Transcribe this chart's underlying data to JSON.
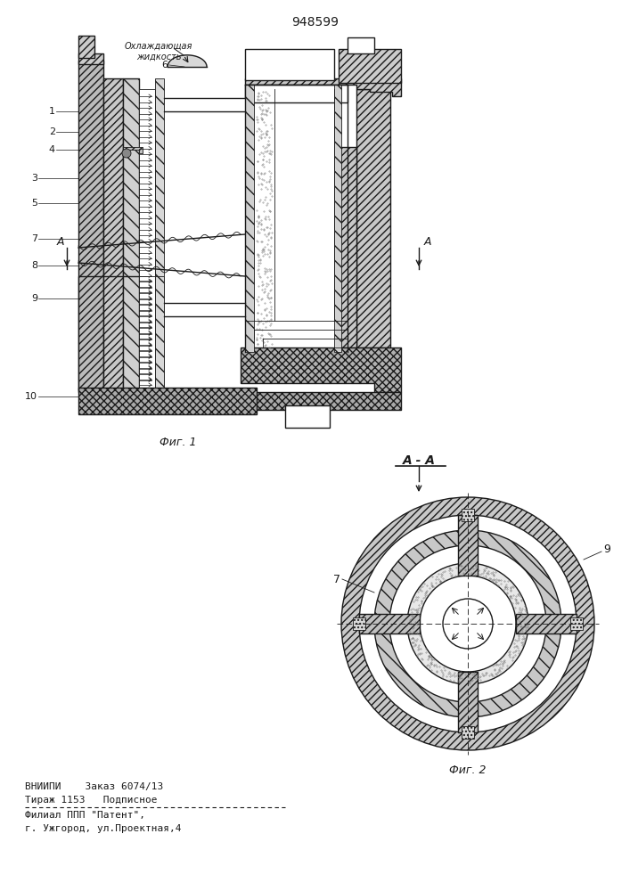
{
  "patent_number": "948599",
  "fig1_caption": "Фиг. 1",
  "fig2_caption": "Фиг. 2",
  "section_label": "А - А",
  "cooling_label": "Охлаждающая\nжидкость",
  "bottom_text_line1": "ВНИИПИ    Заказ 6074/13",
  "bottom_text_line2": "Тираж 1153   Подписное",
  "bottom_text_line3": "Филиал ППП \"Патент\",",
  "bottom_text_line4": "г. Ужгород, ул.Проектная,4",
  "line_color": "#1a1a1a"
}
